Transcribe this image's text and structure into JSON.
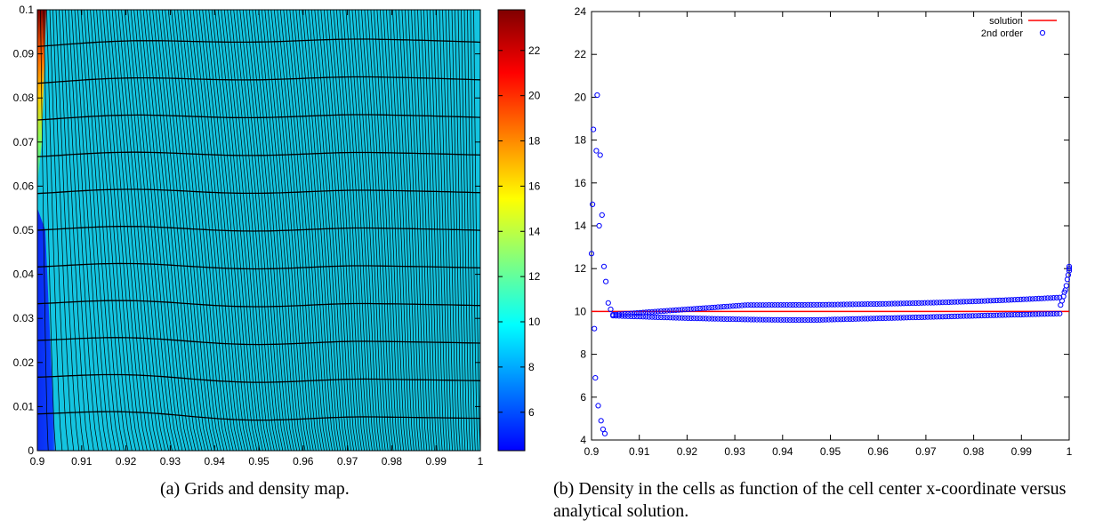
{
  "captions": {
    "a": "(a) Grids and density map.",
    "b": "(b) Density in the cells as function of the cell center x-coordinate versus analytical solution."
  },
  "chart_data": [
    {
      "type": "heatmap",
      "title": "",
      "xlabel": "",
      "ylabel": "",
      "xlim": [
        0.9,
        1.0
      ],
      "ylim": [
        0,
        0.1
      ],
      "x_ticks": [
        "0.9",
        "0.91",
        "0.92",
        "0.93",
        "0.94",
        "0.95",
        "0.96",
        "0.97",
        "0.98",
        "0.99",
        "1"
      ],
      "y_ticks": [
        "0",
        "0.01",
        "0.02",
        "0.03",
        "0.04",
        "0.05",
        "0.06",
        "0.07",
        "0.08",
        "0.09",
        "0.1"
      ],
      "colorbar": {
        "range": [
          4.3,
          23.8
        ],
        "ticks": [
          "6",
          "8",
          "10",
          "12",
          "14",
          "16",
          "18",
          "20",
          "22"
        ],
        "colormap": [
          "#0000ff",
          "#0080ff",
          "#00ffff",
          "#80ff80",
          "#ffff00",
          "#ff8000",
          "#ff0000",
          "#800000"
        ]
      },
      "field": {
        "base_value": 9.9,
        "background": "#14c4e0",
        "left_strip": {
          "x_end": 0.904,
          "value": 4.6
        },
        "hot_corner": {
          "x_end": 0.902,
          "y_start": 0.07,
          "value_max": 23.8
        }
      },
      "grid": {
        "vertical_lines": 140,
        "horizontal_lines": 12,
        "color": "#000000"
      }
    },
    {
      "type": "scatter",
      "title": "",
      "xlabel": "",
      "ylabel": "",
      "xlim": [
        0.9,
        1.0
      ],
      "ylim": [
        4,
        24
      ],
      "x_ticks": [
        "0.9",
        "0.91",
        "0.92",
        "0.93",
        "0.94",
        "0.95",
        "0.96",
        "0.97",
        "0.98",
        "0.99",
        "1"
      ],
      "y_ticks": [
        "4",
        "6",
        "8",
        "10",
        "12",
        "14",
        "16",
        "18",
        "20",
        "22",
        "24"
      ],
      "legend_position": "top-right",
      "series": [
        {
          "name": "solution",
          "kind": "line",
          "color": "#ff0000",
          "x": [
            0.9,
            1.0
          ],
          "y": [
            10,
            10
          ]
        },
        {
          "name": "2nd order",
          "kind": "points",
          "color": "#0000ff",
          "x": [
            0.9,
            0.9002,
            0.9004,
            0.9006,
            0.9008,
            0.901,
            0.9012,
            0.9014,
            0.9016,
            0.9018,
            0.902,
            0.9022,
            0.9024,
            0.9026,
            0.9028,
            0.903,
            0.9035,
            0.904
          ],
          "y": [
            12.7,
            15.0,
            18.5,
            9.2,
            6.9,
            17.5,
            20.1,
            5.6,
            14.0,
            17.3,
            4.9,
            14.5,
            4.5,
            12.1,
            4.3,
            11.4,
            10.4,
            10.1
          ],
          "band": {
            "x_range": [
              0.9045,
              0.998
            ],
            "upper_start": 9.85,
            "upper_mid": 10.3,
            "upper_end": 10.65,
            "lower_start": 9.8,
            "lower_mid": 9.6,
            "lower_end": 9.9,
            "points_per_branch": 150
          },
          "right_edge": {
            "x": [
              0.9982,
              0.9985,
              0.9988,
              0.999,
              0.9992,
              0.9994,
              0.9996,
              0.9998,
              1.0,
              1.0,
              1.0
            ],
            "y": [
              10.3,
              10.5,
              10.7,
              10.9,
              11.0,
              11.2,
              11.5,
              11.7,
              11.9,
              12.1,
              12.0
            ]
          }
        }
      ]
    }
  ]
}
